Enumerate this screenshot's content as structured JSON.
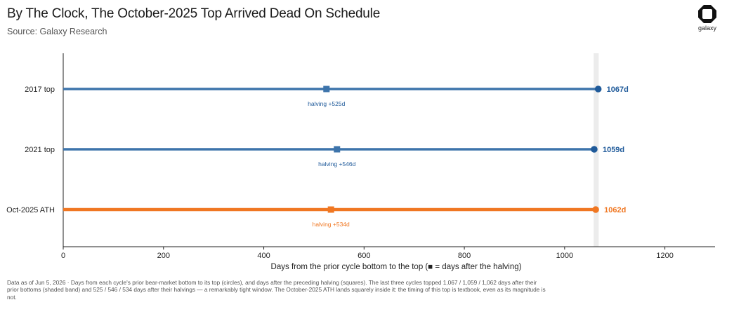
{
  "header": {
    "title": "By The Clock, The October-2025 Top Arrived Dead On Schedule",
    "subtitle": "Source: Galaxy Research"
  },
  "logo": {
    "label": "galaxy"
  },
  "footnote": "Data as of Jun 5, 2026 · Days from each cycle's prior bear-market bottom to its top (circles), and days after the preceding halving (squares). The last three cycles topped 1,067 / 1,059 / 1,062 days after their prior bottoms (shaded band) and 525 / 546 / 534 days after their halvings — a remarkably tight window. The October-2025 ATH lands squarely inside it: the timing of this top is textbook, even as its magnitude is not.",
  "colors": {
    "blue": "#3d74ab",
    "blue_dark": "#1f5a9a",
    "orange": "#f07722",
    "band": "#ececec",
    "axis": "#222222"
  },
  "chart_data": {
    "type": "dumbbell",
    "xlabel": "Days from the prior cycle bottom to the top",
    "xlabel_note": "(■ = days after the halving)",
    "xlim": [
      0,
      1300
    ],
    "xticks": [
      0,
      200,
      400,
      600,
      800,
      1000,
      1200
    ],
    "band": [
      1058,
      1068
    ],
    "rows": [
      {
        "label": "2017 top",
        "top_days": 1067,
        "top_label": "1067d",
        "halving_days": 525,
        "halving_label": "halving +525d",
        "color": "#3d74ab",
        "label_color": "#1f5a9a"
      },
      {
        "label": "2021 top",
        "top_days": 1059,
        "top_label": "1059d",
        "halving_days": 546,
        "halving_label": "halving +546d",
        "color": "#3d74ab",
        "label_color": "#1f5a9a"
      },
      {
        "label": "Oct-2025 ATH",
        "top_days": 1062,
        "top_label": "1062d",
        "halving_days": 534,
        "halving_label": "halving +534d",
        "color": "#f07722",
        "label_color": "#f07722"
      }
    ]
  }
}
